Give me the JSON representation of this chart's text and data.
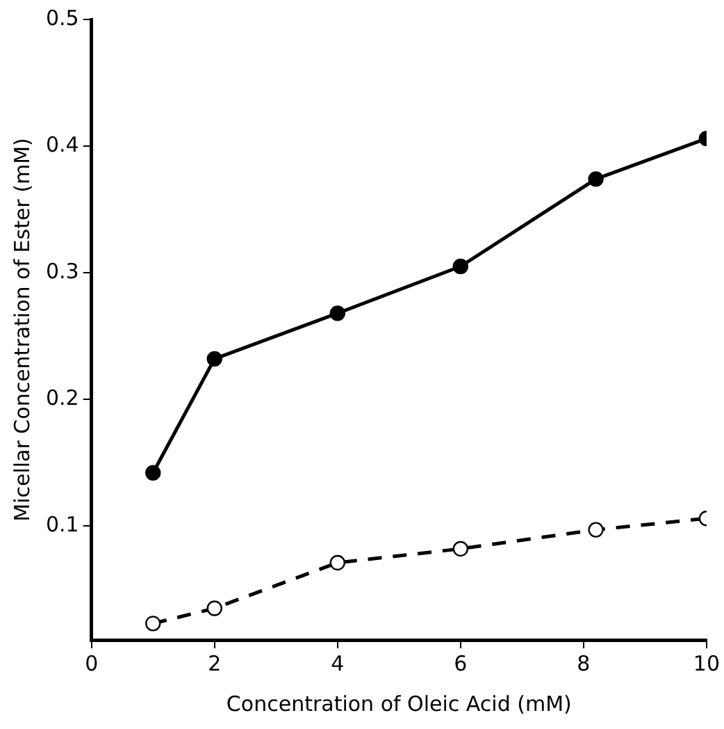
{
  "chart_data": {
    "type": "line",
    "xlabel": "Concentration of Oleic Acid (mM)",
    "ylabel": "Micellar Concentration of Ester (mM)",
    "xlim": [
      0,
      10
    ],
    "xticks": [
      0,
      2,
      4,
      6,
      8,
      10
    ],
    "ylim": [
      0.01,
      0.5
    ],
    "yticks": [
      0.1,
      0.2,
      0.3,
      0.4,
      0.5
    ],
    "grid": false,
    "legend": false,
    "marker": "circle",
    "series": [
      {
        "color": "#000000",
        "line_style": "solid",
        "x": [
          1,
          2,
          4,
          6,
          8.2,
          10
        ],
        "values": [
          0.142,
          0.232,
          0.268,
          0.305,
          0.374,
          0.406
        ]
      },
      {
        "color": "#000000",
        "line_style": "dashed",
        "x": [
          1,
          2,
          4,
          6,
          8.2,
          10
        ],
        "values": [
          0.023,
          0.035,
          0.071,
          0.082,
          0.097,
          0.106
        ]
      }
    ]
  }
}
